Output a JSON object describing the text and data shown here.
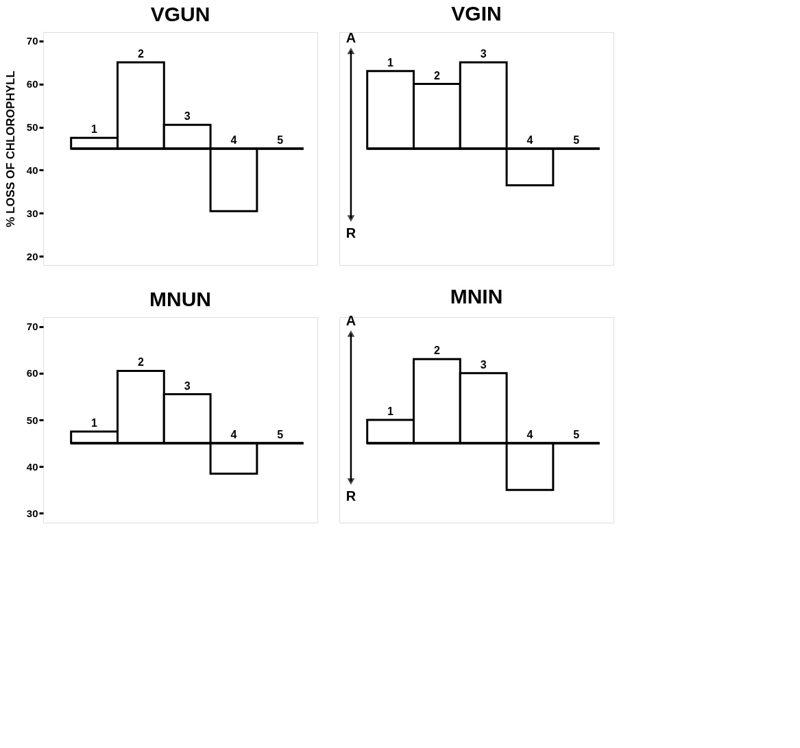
{
  "chart_data": [
    {
      "type": "bar",
      "title": "VGUN",
      "ylabel": "% LOSS OF CHLOROPHYLL",
      "categories": [
        "1",
        "2",
        "3",
        "4",
        "5"
      ],
      "base": [
        45,
        45,
        45,
        45,
        45
      ],
      "values": [
        2.5,
        20,
        5.5,
        -14.5,
        0
      ],
      "color": "#000000",
      "ylim": [
        18,
        72
      ],
      "yticks": [
        20,
        30,
        40,
        50,
        60,
        70
      ],
      "tick_labels": "y",
      "grid": false,
      "ref_lines": [
        {
          "axis": "y",
          "value": 45
        }
      ]
    },
    {
      "type": "bar",
      "title": "VGIN",
      "categories": [
        "1",
        "2",
        "3",
        "4",
        "5"
      ],
      "base": [
        45,
        45,
        45,
        45,
        45
      ],
      "values": [
        18,
        15,
        20,
        -8.5,
        0
      ],
      "color": "#000000",
      "ylim": [
        18,
        72
      ],
      "tick_labels": false,
      "grid": false,
      "ref_lines": [
        {
          "axis": "y",
          "value": 45
        }
      ],
      "annotations": [
        "A",
        "R"
      ]
    },
    {
      "type": "bar",
      "title": "MNUN",
      "categories": [
        "1",
        "2",
        "3",
        "4",
        "5"
      ],
      "base": [
        45,
        45,
        45,
        45,
        45
      ],
      "values": [
        2.5,
        15.5,
        10.5,
        -6.5,
        0
      ],
      "color": "#000000",
      "ylim": [
        28,
        72
      ],
      "yticks": [
        30,
        40,
        50,
        60,
        70
      ],
      "tick_labels": "y",
      "grid": false,
      "ref_lines": [
        {
          "axis": "y",
          "value": 45
        }
      ]
    },
    {
      "type": "bar",
      "title": "MNIN",
      "categories": [
        "1",
        "2",
        "3",
        "4",
        "5"
      ],
      "base": [
        45,
        45,
        45,
        45,
        45
      ],
      "values": [
        5,
        18,
        15,
        -10,
        0
      ],
      "color": "#000000",
      "ylim": [
        28,
        72
      ],
      "tick_labels": false,
      "grid": false,
      "ref_lines": [
        {
          "axis": "y",
          "value": 45
        }
      ],
      "annotations": [
        "A",
        "R"
      ]
    }
  ]
}
